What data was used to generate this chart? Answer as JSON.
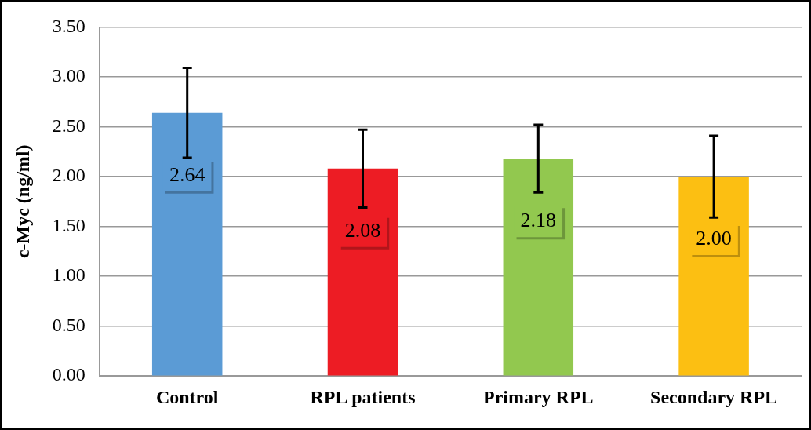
{
  "chart_data": {
    "type": "bar",
    "ylabel": "c-Myc (ng/ml)",
    "categories": [
      "Control",
      "RPL patients",
      "Primary RPL",
      "Secondary RPL"
    ],
    "values": [
      2.64,
      2.08,
      2.18,
      2.0
    ],
    "colors": [
      "#5b9bd5",
      "#ed1c24",
      "#92c84f",
      "#fcbf12"
    ],
    "errors": [
      0.45,
      0.39,
      0.34,
      0.41
    ],
    "ylim": [
      0,
      3.5
    ],
    "yticks": [
      {
        "value": 0,
        "label": "0.00"
      },
      {
        "value": 0.5,
        "label": "0.50"
      },
      {
        "value": 1,
        "label": "1.00"
      },
      {
        "value": 1.5,
        "label": "1.50"
      },
      {
        "value": 2,
        "label": "2.00"
      },
      {
        "value": 2.5,
        "label": "2.50"
      },
      {
        "value": 3,
        "label": "3.00"
      },
      {
        "value": 3.5,
        "label": "3.50"
      }
    ],
    "value_labels": [
      "2.64",
      "2.08",
      "2.18",
      "2.00"
    ],
    "grid": "y",
    "legend": false
  }
}
